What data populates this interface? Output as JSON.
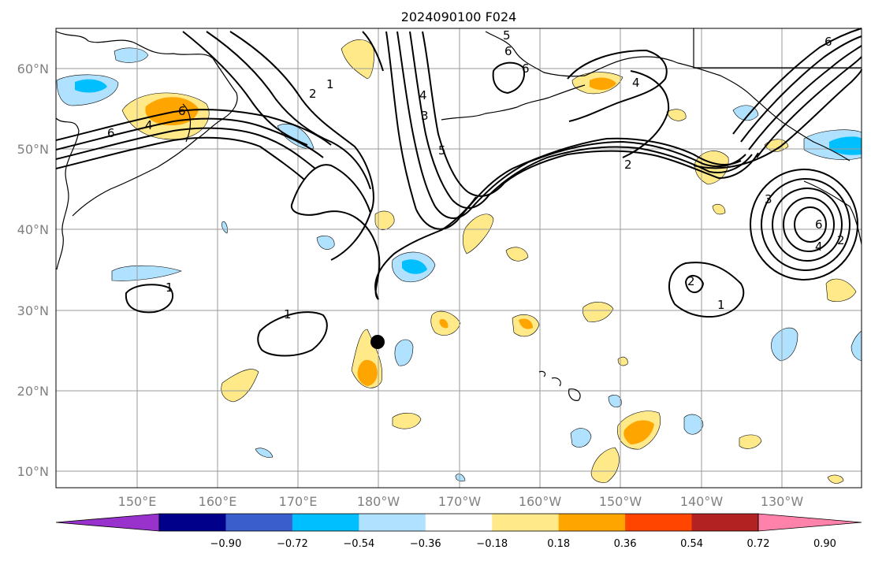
{
  "title": "2024090100 F024",
  "lat_labels": [
    "60°N",
    "50°N",
    "40°N",
    "30°N",
    "20°N",
    "10°N"
  ],
  "lon_labels": [
    "150°E",
    "160°E",
    "170°E",
    "180°W",
    "170°W",
    "160°W",
    "150°W",
    "140°W",
    "130°W"
  ],
  "colorbar": {
    "ticks": [
      "−0.90",
      "−0.72",
      "−0.54",
      "−0.36",
      "−0.18",
      "0.18",
      "0.36",
      "0.54",
      "0.72",
      "0.90"
    ],
    "colors": [
      "#9932cc",
      "#00008b",
      "#3a5fcd",
      "#00bfff",
      "#b0e2ff",
      "#ffffff",
      "#ffe989",
      "#ffa500",
      "#ff4500",
      "#b22222",
      "#ff82ab"
    ]
  },
  "contour_labels": [
    "6",
    "4",
    "2",
    "1",
    "6",
    "5",
    "3",
    "4",
    "5",
    "2",
    "6",
    "4",
    "6",
    "6",
    "3",
    "1",
    "1",
    "2",
    "1",
    "6",
    "4",
    "2"
  ],
  "marker": "storm-position"
}
